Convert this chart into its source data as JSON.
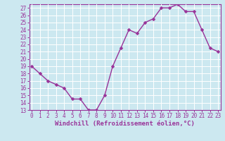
{
  "x": [
    0,
    1,
    2,
    3,
    4,
    5,
    6,
    7,
    8,
    9,
    10,
    11,
    12,
    13,
    14,
    15,
    16,
    17,
    18,
    19,
    20,
    21,
    22,
    23
  ],
  "y": [
    19,
    18,
    17,
    16.5,
    16,
    14.5,
    14.5,
    13,
    13,
    15,
    19,
    21.5,
    24,
    23.5,
    25,
    25.5,
    27,
    27,
    27.5,
    26.5,
    26.5,
    24,
    21.5,
    21
  ],
  "line_color": "#993399",
  "marker": "D",
  "marker_size": 2.5,
  "marker_color": "#993399",
  "bg_color": "#cce8f0",
  "grid_color": "#ffffff",
  "xlabel": "Windchill (Refroidissement éolien,°C)",
  "xlabel_color": "#993399",
  "tick_color": "#993399",
  "ylim": [
    13,
    27.5
  ],
  "xlim": [
    -0.3,
    23.3
  ],
  "yticks": [
    13,
    14,
    15,
    16,
    17,
    18,
    19,
    20,
    21,
    22,
    23,
    24,
    25,
    26,
    27
  ],
  "xticks": [
    0,
    1,
    2,
    3,
    4,
    5,
    6,
    7,
    8,
    9,
    10,
    11,
    12,
    13,
    14,
    15,
    16,
    17,
    18,
    19,
    20,
    21,
    22,
    23
  ],
  "xtick_labels": [
    "0",
    "1",
    "2",
    "3",
    "4",
    "5",
    "6",
    "7",
    "8",
    "9",
    "10",
    "11",
    "12",
    "13",
    "14",
    "15",
    "16",
    "17",
    "18",
    "19",
    "20",
    "21",
    "22",
    "23"
  ],
  "line_width": 1.0,
  "spine_color": "#993399",
  "fig_bg": "#cce8f0",
  "tick_fontsize": 5.5,
  "xlabel_fontsize": 6.5
}
